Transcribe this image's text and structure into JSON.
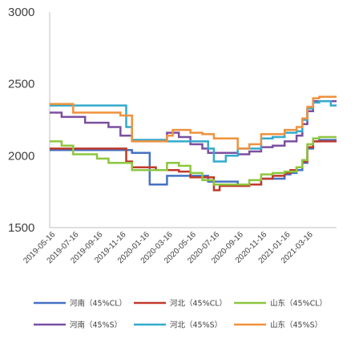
{
  "chart_data": {
    "type": "line",
    "step": true,
    "title": "",
    "xlabel": "",
    "ylabel": "",
    "ylim": [
      1500,
      3000
    ],
    "yticks": [
      1500,
      2000,
      2500,
      3000
    ],
    "xlim": [
      "2019-05-01",
      "2021-05-16"
    ],
    "xticks": [
      "2019-05-16",
      "2019-07-16",
      "2019-09-16",
      "2019-11-16",
      "2020-01-16",
      "2020-03-16",
      "2020-05-16",
      "2020-07-16",
      "2020-09-16",
      "2020-11-16",
      "2021-01-16",
      "2021-03-16"
    ],
    "grid": false,
    "legend_position": "bottom",
    "series": [
      {
        "name": "河南（45%CL）",
        "color": "#4472c4",
        "x": [
          "2019-05-01",
          "2019-11-01",
          "2019-12-01",
          "2020-01-01",
          "2020-01-16",
          "2020-03-01",
          "2020-06-01",
          "2020-06-16",
          "2020-09-01",
          "2020-10-01",
          "2020-11-01",
          "2021-01-01",
          "2021-01-16",
          "2021-02-01",
          "2021-02-16",
          "2021-03-01",
          "2021-03-16",
          "2021-04-01",
          "2021-05-16"
        ],
        "y": [
          2040,
          2040,
          2020,
          2020,
          1800,
          1860,
          1860,
          1820,
          1800,
          1800,
          1840,
          1870,
          1880,
          1900,
          1950,
          2050,
          2100,
          2110,
          2110
        ]
      },
      {
        "name": "河北（45%CL）",
        "color": "#c0392b",
        "x": [
          "2019-05-01",
          "2019-10-01",
          "2019-11-16",
          "2019-12-01",
          "2020-02-01",
          "2020-04-01",
          "2020-05-01",
          "2020-07-01",
          "2020-07-16",
          "2020-10-01",
          "2020-11-01",
          "2020-12-01",
          "2021-01-01",
          "2021-01-16",
          "2021-02-01",
          "2021-02-16",
          "2021-03-01",
          "2021-03-16",
          "2021-04-01",
          "2021-05-16"
        ],
        "y": [
          2050,
          2050,
          1960,
          1920,
          1900,
          1890,
          1850,
          1760,
          1790,
          1800,
          1840,
          1860,
          1880,
          1900,
          1920,
          1960,
          2060,
          2100,
          2100,
          2100
        ]
      },
      {
        "name": "山东（45%CL）",
        "color": "#8dc63f",
        "x": [
          "2019-05-01",
          "2019-06-01",
          "2019-07-01",
          "2019-09-01",
          "2019-10-01",
          "2019-12-01",
          "2020-03-01",
          "2020-04-01",
          "2020-05-01",
          "2020-06-01",
          "2020-07-01",
          "2020-09-01",
          "2020-10-01",
          "2020-11-01",
          "2020-12-01",
          "2021-01-01",
          "2021-02-01",
          "2021-02-16",
          "2021-03-01",
          "2021-03-16",
          "2021-04-01",
          "2021-05-16"
        ],
        "y": [
          2100,
          2070,
          2010,
          1980,
          1950,
          1900,
          1950,
          1930,
          1880,
          1830,
          1800,
          1800,
          1830,
          1870,
          1880,
          1890,
          1920,
          1970,
          2080,
          2120,
          2130,
          2130
        ]
      },
      {
        "name": "河南（45%S）",
        "color": "#7b4fa0",
        "x": [
          "2019-05-01",
          "2019-06-01",
          "2019-08-01",
          "2019-10-01",
          "2019-11-01",
          "2019-12-01",
          "2020-03-01",
          "2020-04-01",
          "2020-05-01",
          "2020-06-01",
          "2020-06-16",
          "2020-09-01",
          "2020-10-01",
          "2020-11-01",
          "2020-12-01",
          "2021-01-01",
          "2021-02-01",
          "2021-02-16",
          "2021-03-01",
          "2021-03-16",
          "2021-04-01",
          "2021-05-16"
        ],
        "y": [
          2300,
          2270,
          2230,
          2200,
          2140,
          2110,
          2160,
          2130,
          2080,
          2050,
          2020,
          2010,
          2030,
          2060,
          2070,
          2100,
          2140,
          2220,
          2310,
          2380,
          2380,
          2380
        ]
      },
      {
        "name": "河北（45%S）",
        "color": "#33aacc",
        "x": [
          "2019-05-01",
          "2019-11-01",
          "2019-11-16",
          "2019-12-01",
          "2020-03-01",
          "2020-06-01",
          "2020-06-16",
          "2020-07-01",
          "2020-08-01",
          "2020-09-01",
          "2020-11-01",
          "2020-12-01",
          "2021-01-01",
          "2021-02-01",
          "2021-02-16",
          "2021-03-01",
          "2021-03-16",
          "2021-04-01",
          "2021-05-01",
          "2021-05-16"
        ],
        "y": [
          2350,
          2350,
          2200,
          2110,
          2100,
          2100,
          2050,
          1960,
          2000,
          2050,
          2120,
          2130,
          2160,
          2170,
          2250,
          2330,
          2370,
          2380,
          2350,
          2350
        ]
      },
      {
        "name": "山东（45%S）",
        "color": "#f0913c",
        "x": [
          "2019-05-01",
          "2019-07-01",
          "2019-07-16",
          "2019-11-01",
          "2019-12-01",
          "2020-03-01",
          "2020-03-16",
          "2020-05-01",
          "2020-06-01",
          "2020-07-01",
          "2020-09-01",
          "2020-10-01",
          "2020-11-01",
          "2020-12-01",
          "2021-01-01",
          "2021-02-01",
          "2021-02-16",
          "2021-03-01",
          "2021-03-16",
          "2021-04-01",
          "2021-05-16"
        ],
        "y": [
          2360,
          2300,
          2300,
          2280,
          2100,
          2140,
          2180,
          2160,
          2150,
          2120,
          2050,
          2080,
          2150,
          2150,
          2180,
          2200,
          2260,
          2340,
          2400,
          2410,
          2410
        ]
      }
    ]
  }
}
